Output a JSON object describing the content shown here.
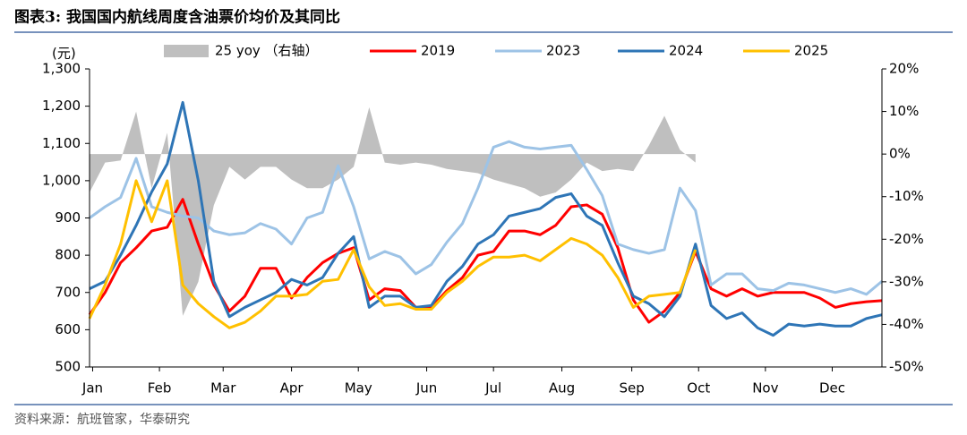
{
  "chart_data": {
    "type": "line",
    "title": "图表3:  我国国内航线周度含油票价均价及其同比",
    "ylabel": "(元)",
    "source": "资料来源：航班管家，华泰研究",
    "x": [
      1,
      2,
      3,
      4,
      5,
      6,
      7,
      8,
      9,
      10,
      11,
      12,
      13,
      14,
      15,
      16,
      17,
      18,
      19,
      20,
      21,
      22,
      23,
      24,
      25,
      26,
      27,
      28,
      29,
      30,
      31,
      32,
      33,
      34,
      35,
      36,
      37,
      38,
      39,
      40,
      41,
      42,
      43,
      44,
      45,
      46,
      47,
      48,
      49,
      50,
      51,
      52
    ],
    "xlim": [
      1,
      52
    ],
    "xticks": [
      {
        "value": 1.2,
        "label": "Jan"
      },
      {
        "value": 5.5,
        "label": "Feb"
      },
      {
        "value": 9.6,
        "label": "Mar"
      },
      {
        "value": 14,
        "label": "Apr"
      },
      {
        "value": 18.3,
        "label": "May"
      },
      {
        "value": 22.7,
        "label": "Jun"
      },
      {
        "value": 27,
        "label": "Jul"
      },
      {
        "value": 31.4,
        "label": "Aug"
      },
      {
        "value": 35.9,
        "label": "Sep"
      },
      {
        "value": 40.2,
        "label": "Oct"
      },
      {
        "value": 44.5,
        "label": "Nov"
      },
      {
        "value": 48.8,
        "label": "Dec"
      }
    ],
    "ylim": [
      500,
      1300
    ],
    "yticks": [
      500,
      600,
      700,
      800,
      900,
      {
        "value": 1000,
        "label": "1,000"
      },
      {
        "value": 1100,
        "label": "1,100"
      },
      {
        "value": 1200,
        "label": "1,200"
      },
      {
        "value": 1300,
        "label": "1,300"
      }
    ],
    "y2lim": [
      -50,
      20
    ],
    "y2ticks": [
      {
        "value": -50,
        "label": "-50%"
      },
      {
        "value": -40,
        "label": "-40%"
      },
      {
        "value": -30,
        "label": "-30%"
      },
      {
        "value": -20,
        "label": "-20%"
      },
      {
        "value": -10,
        "label": "-10%"
      },
      {
        "value": 0,
        "label": "0%"
      },
      {
        "value": 10,
        "label": "10%"
      },
      {
        "value": 20,
        "label": "20%"
      }
    ],
    "series": [
      {
        "name": "25 yoy （右轴）",
        "type": "area",
        "axis": "y2",
        "color": "#bfbfbf",
        "values": [
          -9,
          -2,
          -1.5,
          10,
          -8,
          5,
          -38,
          -30,
          -12,
          -3,
          -6,
          -3,
          -3,
          -6,
          -8,
          -8,
          -6,
          -3,
          11,
          -2,
          -2.5,
          -2,
          -2.5,
          -3.5,
          -4,
          -4.5,
          -6,
          -7,
          -8,
          -10,
          -9,
          -6,
          -2,
          -4,
          -3.5,
          -4,
          2,
          9,
          1,
          -2,
          null,
          null,
          null,
          null,
          null,
          null,
          null,
          null,
          null,
          null,
          null,
          null
        ]
      },
      {
        "name": "2019",
        "color": "#ff0000",
        "values": [
          640,
          700,
          780,
          820,
          865,
          875,
          950,
          830,
          720,
          650,
          690,
          765,
          765,
          685,
          740,
          780,
          805,
          820,
          680,
          710,
          705,
          660,
          660,
          705,
          740,
          800,
          810,
          865,
          865,
          855,
          880,
          930,
          935,
          910,
          820,
          680,
          620,
          650,
          700,
          810,
          710,
          690,
          710,
          690,
          700,
          700,
          700,
          685,
          660,
          670,
          675,
          678
        ]
      },
      {
        "name": "2023",
        "color": "#9dc3e6",
        "values": [
          900,
          930,
          955,
          1060,
          930,
          915,
          905,
          900,
          865,
          855,
          860,
          885,
          870,
          830,
          900,
          915,
          1040,
          930,
          790,
          810,
          795,
          750,
          775,
          835,
          885,
          980,
          1090,
          1105,
          1090,
          1085,
          1090,
          1095,
          1030,
          960,
          830,
          815,
          805,
          815,
          980,
          920,
          720,
          750,
          750,
          710,
          705,
          725,
          720,
          710,
          700,
          710,
          695,
          730
        ]
      },
      {
        "name": "2024",
        "color": "#2e75b6",
        "values": [
          710,
          730,
          800,
          880,
          970,
          1045,
          1210,
          1000,
          730,
          635,
          660,
          680,
          700,
          735,
          720,
          740,
          805,
          850,
          660,
          690,
          690,
          660,
          665,
          730,
          770,
          830,
          855,
          905,
          915,
          925,
          955,
          965,
          905,
          880,
          780,
          690,
          670,
          635,
          690,
          830,
          665,
          630,
          645,
          605,
          585,
          615,
          610,
          615,
          610,
          610,
          630,
          640
        ]
      },
      {
        "name": "2025",
        "color": "#ffc000",
        "values": [
          630,
          720,
          830,
          1000,
          890,
          1000,
          720,
          670,
          635,
          605,
          620,
          650,
          690,
          690,
          695,
          730,
          735,
          815,
          715,
          665,
          670,
          655,
          655,
          700,
          730,
          770,
          795,
          795,
          800,
          785,
          815,
          845,
          830,
          800,
          740,
          660,
          690,
          695,
          700,
          815,
          null,
          null,
          null,
          null,
          null,
          null,
          null,
          null,
          null,
          null,
          null,
          null
        ]
      }
    ]
  }
}
